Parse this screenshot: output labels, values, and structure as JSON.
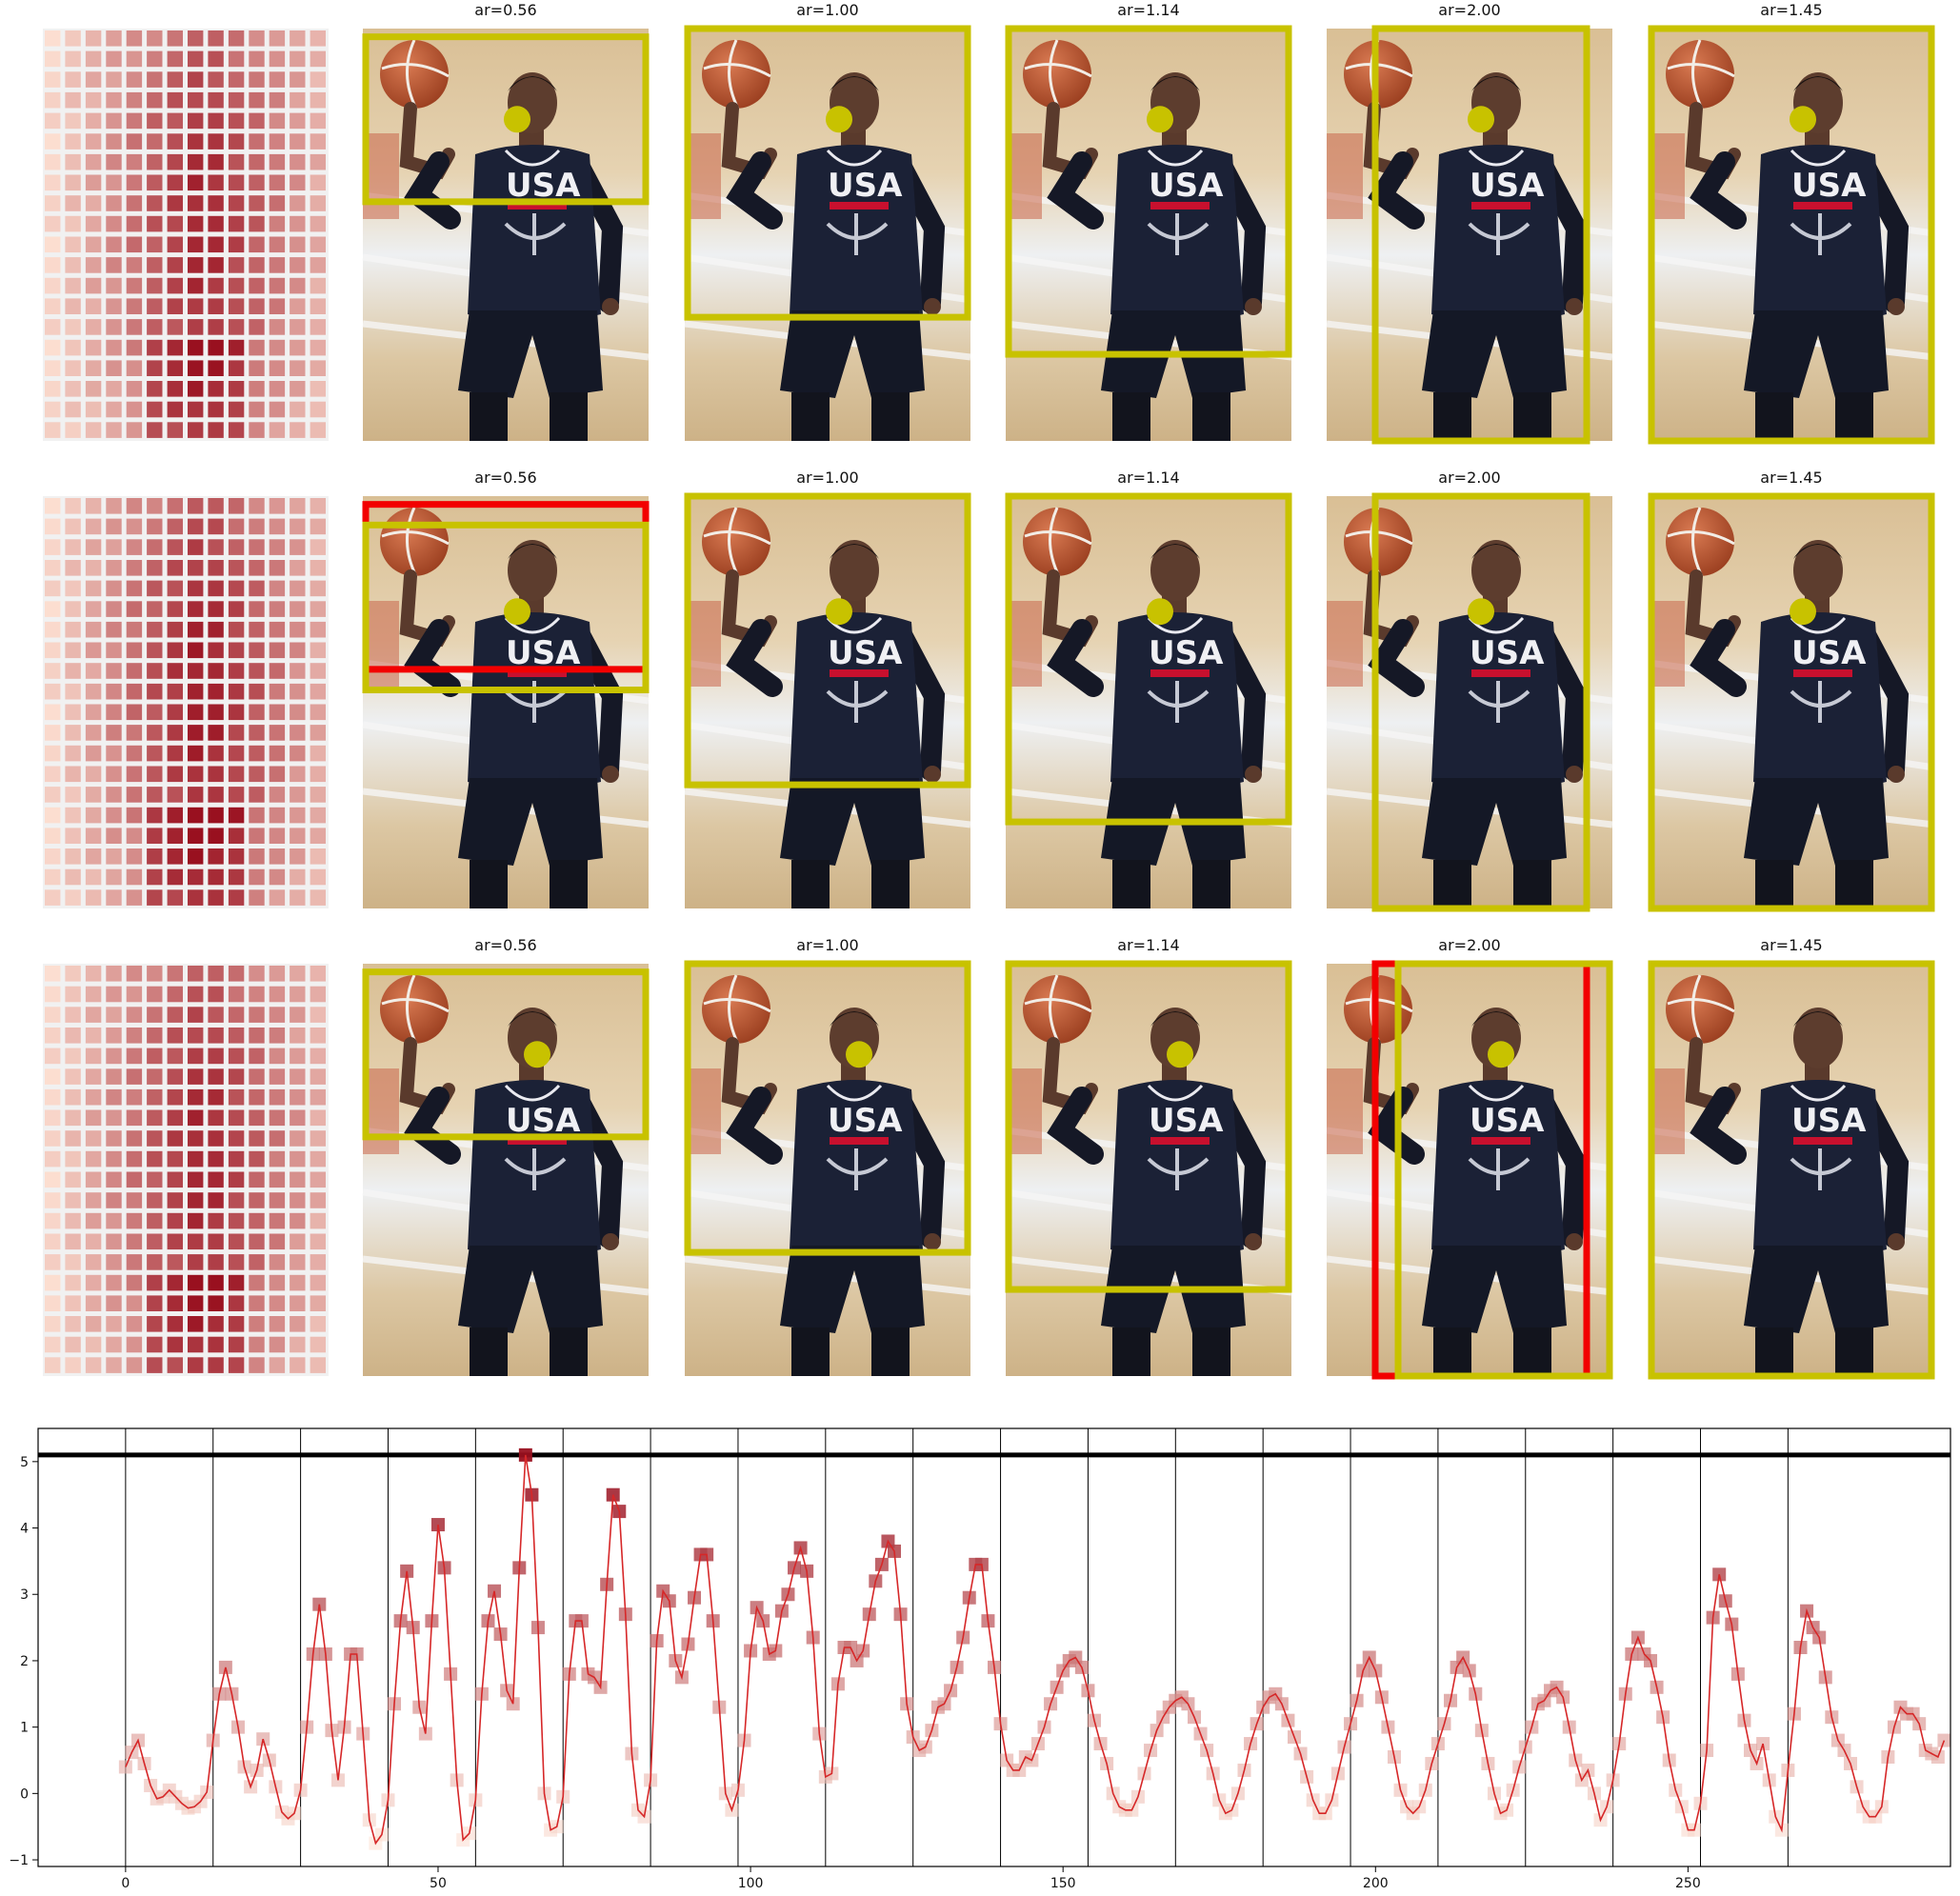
{
  "figure": {
    "panel_titles": [
      "ar=0.56",
      "ar=1.00",
      "ar=1.14",
      "ar=2.00",
      "ar=1.45"
    ],
    "photo_alt": "Basketball player in navy USA Basketball jersey holding a basketball",
    "colors": {
      "crop_box": "#c8c200",
      "rejected_box": "#f20000",
      "center_dot": "#c8c200",
      "heat_low": "#fde0d2",
      "heat_high": "#99101f"
    }
  },
  "chart_data": {
    "type": "line",
    "series": [
      {
        "values": [
          0.4,
          0.62,
          0.8,
          0.45,
          0.12,
          -0.08,
          -0.05,
          0.05,
          -0.05,
          -0.15,
          -0.22,
          -0.2,
          -0.12,
          0.02,
          0.8,
          1.5,
          1.9,
          1.5,
          1.0,
          0.4,
          0.1,
          0.35,
          0.82,
          0.5,
          0.1,
          -0.28,
          -0.38,
          -0.3,
          0.05,
          1.0,
          2.1,
          2.85,
          2.1,
          0.95,
          0.2,
          1.0,
          2.1,
          2.1,
          0.9,
          -0.4,
          -0.75,
          -0.62,
          -0.1,
          1.35,
          2.6,
          3.35,
          2.5,
          1.3,
          0.9,
          2.6,
          4.05,
          3.4,
          1.8,
          0.2,
          -0.7,
          -0.6,
          -0.1,
          1.5,
          2.6,
          3.05,
          2.4,
          1.55,
          1.35,
          3.4,
          5.1,
          4.5,
          2.5,
          0.0,
          -0.55,
          -0.5,
          -0.05,
          1.8,
          2.6,
          2.6,
          1.8,
          1.75,
          1.6,
          3.15,
          4.5,
          4.25,
          2.7,
          0.6,
          -0.25,
          -0.35,
          0.2,
          2.3,
          3.05,
          2.9,
          2.0,
          1.75,
          2.25,
          2.95,
          3.6,
          3.6,
          2.6,
          1.3,
          0.0,
          -0.25,
          0.05,
          0.8,
          2.15,
          2.8,
          2.6,
          2.1,
          2.15,
          2.75,
          3.0,
          3.4,
          3.7,
          3.35,
          2.35,
          0.9,
          0.25,
          0.3,
          1.65,
          2.2,
          2.2,
          2.0,
          2.15,
          2.7,
          3.2,
          3.45,
          3.8,
          3.65,
          2.7,
          1.35,
          0.85,
          0.65,
          0.7,
          0.95,
          1.3,
          1.35,
          1.55,
          1.9,
          2.35,
          2.95,
          3.45,
          3.45,
          2.6,
          1.9,
          1.05,
          0.5,
          0.35,
          0.35,
          0.55,
          0.5,
          0.75,
          1.0,
          1.35,
          1.6,
          1.85,
          2.0,
          2.05,
          1.9,
          1.55,
          1.1,
          0.75,
          0.45,
          0.0,
          -0.2,
          -0.25,
          -0.25,
          -0.05,
          0.3,
          0.65,
          0.95,
          1.15,
          1.3,
          1.4,
          1.45,
          1.35,
          1.15,
          0.9,
          0.65,
          0.3,
          -0.1,
          -0.3,
          -0.25,
          0.0,
          0.35,
          0.75,
          1.05,
          1.3,
          1.45,
          1.5,
          1.35,
          1.1,
          0.85,
          0.6,
          0.25,
          -0.1,
          -0.3,
          -0.3,
          -0.1,
          0.3,
          0.7,
          1.05,
          1.4,
          1.85,
          2.05,
          1.85,
          1.45,
          1.0,
          0.55,
          0.05,
          -0.2,
          -0.3,
          -0.2,
          0.05,
          0.45,
          0.75,
          1.05,
          1.4,
          1.9,
          2.05,
          1.85,
          1.5,
          0.95,
          0.45,
          0.0,
          -0.3,
          -0.25,
          0.05,
          0.4,
          0.7,
          1.0,
          1.35,
          1.4,
          1.55,
          1.6,
          1.45,
          1.0,
          0.5,
          0.2,
          0.35,
          0.0,
          -0.4,
          -0.2,
          0.2,
          0.75,
          1.5,
          2.1,
          2.35,
          2.1,
          2.0,
          1.6,
          1.15,
          0.5,
          0.05,
          -0.2,
          -0.55,
          -0.55,
          -0.15,
          0.65,
          2.65,
          3.3,
          2.9,
          2.55,
          1.8,
          1.1,
          0.65,
          0.45,
          0.75,
          0.2,
          -0.35,
          -0.55,
          0.35,
          1.2,
          2.2,
          2.75,
          2.5,
          2.35,
          1.75,
          1.15,
          0.8,
          0.65,
          0.45,
          0.1,
          -0.2,
          -0.35,
          -0.35,
          -0.2,
          0.55,
          1.0,
          1.3,
          1.2,
          1.2,
          1.05,
          0.65,
          0.6,
          0.55,
          0.8
        ]
      }
    ],
    "xlim": [
      -14,
      292
    ],
    "ylim": [
      -1.1,
      5.5
    ],
    "xticks": [
      0,
      50,
      100,
      150,
      200,
      250
    ],
    "yticks": [
      -1,
      0,
      1,
      2,
      3,
      4,
      5
    ],
    "hline": 5.1,
    "vlines": [
      0,
      14,
      28,
      42,
      56,
      70,
      84,
      98,
      112,
      126,
      140,
      154,
      168,
      182,
      196,
      210,
      224,
      238,
      252,
      266
    ],
    "marker": "square",
    "grid": false,
    "title": "",
    "xlabel": "",
    "ylabel": ""
  }
}
